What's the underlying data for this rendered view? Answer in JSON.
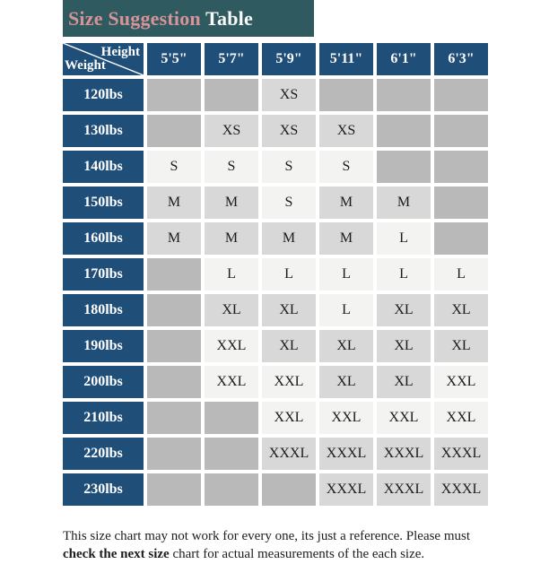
{
  "title": {
    "highlight": "Size Suggestion",
    "rest": " Table"
  },
  "table": {
    "corner": {
      "top_label": "Height",
      "bottom_label": "Weight"
    },
    "heights": [
      "5'5\"",
      "5'7\"",
      "5'9\"",
      "5'11\"",
      "6'1\"",
      "6'3\""
    ],
    "rows": [
      {
        "weight": "120lbs",
        "cells": [
          {
            "v": "",
            "s": "empty"
          },
          {
            "v": "",
            "s": "empty"
          },
          {
            "v": "XS",
            "s": "mid"
          },
          {
            "v": "",
            "s": "empty"
          },
          {
            "v": "",
            "s": "empty"
          },
          {
            "v": "",
            "s": "empty"
          }
        ]
      },
      {
        "weight": "130lbs",
        "cells": [
          {
            "v": "",
            "s": "empty"
          },
          {
            "v": "XS",
            "s": "mid"
          },
          {
            "v": "XS",
            "s": "mid"
          },
          {
            "v": "XS",
            "s": "mid"
          },
          {
            "v": "",
            "s": "empty"
          },
          {
            "v": "",
            "s": "empty"
          }
        ]
      },
      {
        "weight": "140lbs",
        "cells": [
          {
            "v": "S",
            "s": "hi"
          },
          {
            "v": "S",
            "s": "hi"
          },
          {
            "v": "S",
            "s": "hi"
          },
          {
            "v": "S",
            "s": "hi"
          },
          {
            "v": "",
            "s": "empty"
          },
          {
            "v": "",
            "s": "empty"
          }
        ]
      },
      {
        "weight": "150lbs",
        "cells": [
          {
            "v": "M",
            "s": "mid"
          },
          {
            "v": "M",
            "s": "mid"
          },
          {
            "v": "S",
            "s": "hi"
          },
          {
            "v": "M",
            "s": "mid"
          },
          {
            "v": "M",
            "s": "mid"
          },
          {
            "v": "",
            "s": "empty"
          }
        ]
      },
      {
        "weight": "160lbs",
        "cells": [
          {
            "v": "M",
            "s": "mid"
          },
          {
            "v": "M",
            "s": "mid"
          },
          {
            "v": "M",
            "s": "mid"
          },
          {
            "v": "M",
            "s": "mid"
          },
          {
            "v": "L",
            "s": "hi"
          },
          {
            "v": "",
            "s": "empty"
          }
        ]
      },
      {
        "weight": "170lbs",
        "cells": [
          {
            "v": "",
            "s": "empty"
          },
          {
            "v": "L",
            "s": "hi"
          },
          {
            "v": "L",
            "s": "hi"
          },
          {
            "v": "L",
            "s": "hi"
          },
          {
            "v": "L",
            "s": "hi"
          },
          {
            "v": "L",
            "s": "hi"
          }
        ]
      },
      {
        "weight": "180lbs",
        "cells": [
          {
            "v": "",
            "s": "empty"
          },
          {
            "v": "XL",
            "s": "mid"
          },
          {
            "v": "XL",
            "s": "mid"
          },
          {
            "v": "L",
            "s": "hi"
          },
          {
            "v": "XL",
            "s": "mid"
          },
          {
            "v": "XL",
            "s": "mid"
          }
        ]
      },
      {
        "weight": "190lbs",
        "cells": [
          {
            "v": "",
            "s": "empty"
          },
          {
            "v": "XXL",
            "s": "hi"
          },
          {
            "v": "XL",
            "s": "mid"
          },
          {
            "v": "XL",
            "s": "mid"
          },
          {
            "v": "XL",
            "s": "mid"
          },
          {
            "v": "XL",
            "s": "mid"
          }
        ]
      },
      {
        "weight": "200lbs",
        "cells": [
          {
            "v": "",
            "s": "empty"
          },
          {
            "v": "XXL",
            "s": "hi"
          },
          {
            "v": "XXL",
            "s": "hi"
          },
          {
            "v": "XL",
            "s": "mid"
          },
          {
            "v": "XL",
            "s": "mid"
          },
          {
            "v": "XXL",
            "s": "hi"
          }
        ]
      },
      {
        "weight": "210lbs",
        "cells": [
          {
            "v": "",
            "s": "empty"
          },
          {
            "v": "",
            "s": "empty"
          },
          {
            "v": "XXL",
            "s": "hi"
          },
          {
            "v": "XXL",
            "s": "hi"
          },
          {
            "v": "XXL",
            "s": "hi"
          },
          {
            "v": "XXL",
            "s": "hi"
          }
        ]
      },
      {
        "weight": "220lbs",
        "cells": [
          {
            "v": "",
            "s": "empty"
          },
          {
            "v": "",
            "s": "empty"
          },
          {
            "v": "XXXL",
            "s": "mid"
          },
          {
            "v": "XXXL",
            "s": "mid"
          },
          {
            "v": "XXXL",
            "s": "mid"
          },
          {
            "v": "XXXL",
            "s": "mid"
          }
        ]
      },
      {
        "weight": "230lbs",
        "cells": [
          {
            "v": "",
            "s": "empty"
          },
          {
            "v": "",
            "s": "empty"
          },
          {
            "v": "",
            "s": "empty"
          },
          {
            "v": "XXXL",
            "s": "mid"
          },
          {
            "v": "XXXL",
            "s": "mid"
          },
          {
            "v": "XXXL",
            "s": "mid"
          }
        ]
      }
    ]
  },
  "footer": {
    "pre": "This size chart may not work for every one, its just a reference. Please must ",
    "bold": "check the next size",
    "post": " chart for actual measurements of the each size."
  },
  "colors": {
    "header_navy": "#1f4e79",
    "title_teal": "#2f5a60",
    "title_highlight": "#d69498",
    "cell_empty": "#b9b9b9",
    "cell_mid": "#d8d8d8",
    "cell_hi": "#f3f3f2"
  },
  "chart_data": {
    "type": "table",
    "title": "Size Suggestion Table",
    "columns": [
      "Weight",
      "5'5\"",
      "5'7\"",
      "5'9\"",
      "5'11\"",
      "6'1\"",
      "6'3\""
    ],
    "rows": [
      [
        "120lbs",
        "",
        "",
        "XS",
        "",
        "",
        ""
      ],
      [
        "130lbs",
        "",
        "XS",
        "XS",
        "XS",
        "",
        ""
      ],
      [
        "140lbs",
        "S",
        "S",
        "S",
        "S",
        "",
        ""
      ],
      [
        "150lbs",
        "M",
        "M",
        "S",
        "M",
        "M",
        ""
      ],
      [
        "160lbs",
        "M",
        "M",
        "M",
        "M",
        "L",
        ""
      ],
      [
        "170lbs",
        "",
        "L",
        "L",
        "L",
        "L",
        "L"
      ],
      [
        "180lbs",
        "",
        "XL",
        "XL",
        "L",
        "XL",
        "XL"
      ],
      [
        "190lbs",
        "",
        "XXL",
        "XL",
        "XL",
        "XL",
        "XL"
      ],
      [
        "200lbs",
        "",
        "XXL",
        "XXL",
        "XL",
        "XL",
        "XXL"
      ],
      [
        "210lbs",
        "",
        "",
        "XXL",
        "XXL",
        "XXL",
        "XXL"
      ],
      [
        "220lbs",
        "",
        "",
        "XXXL",
        "XXXL",
        "XXXL",
        "XXXL"
      ],
      [
        "230lbs",
        "",
        "",
        "",
        "XXXL",
        "XXXL",
        "XXXL"
      ]
    ],
    "notes": "Footer: This size chart may not work for every one, its just a reference. Please must check the next size chart for actual measurements of the each size."
  }
}
